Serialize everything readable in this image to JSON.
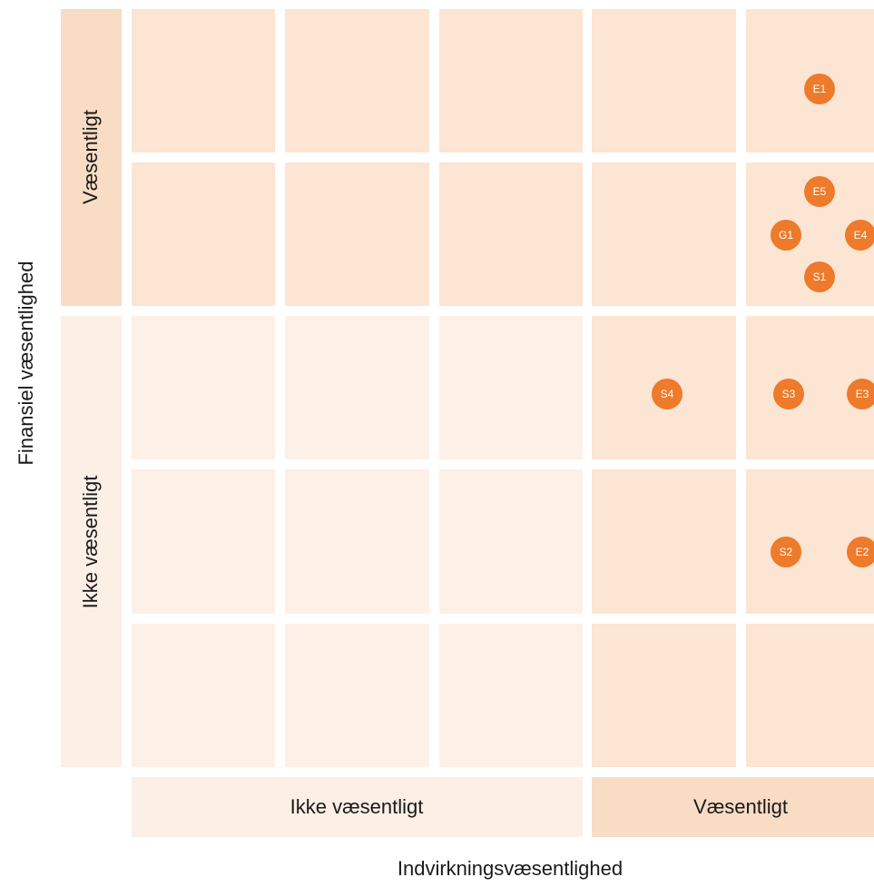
{
  "y_axis": {
    "title": "Finansiel væsentlighed",
    "bands": [
      "Væsentligt",
      "Ikke væsentligt"
    ]
  },
  "x_axis": {
    "title": "Indvirkningsvæsentlighed",
    "bands": [
      "Ikke væsentligt",
      "Væsentligt"
    ]
  },
  "topics": [
    "E1",
    "E5",
    "G1",
    "E4",
    "S1",
    "S4",
    "S3",
    "E3",
    "S2",
    "E2"
  ]
}
